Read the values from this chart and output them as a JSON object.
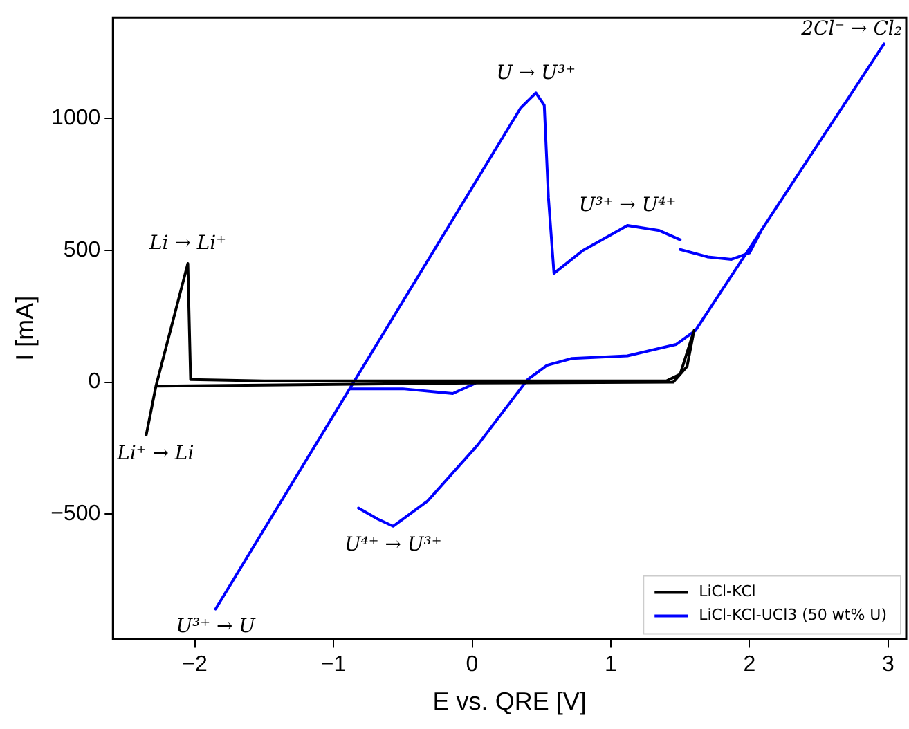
{
  "chart_data": {
    "type": "line",
    "xlabel": "E vs. QRE [V]",
    "ylabel": "I [mA]",
    "xlim": [
      -2.59,
      3.13
    ],
    "ylim": [
      -975,
      1383
    ],
    "xticks": [
      -2,
      -1,
      0,
      1,
      2,
      3
    ],
    "yticks": [
      -500,
      0,
      500,
      1000
    ],
    "grid": false,
    "legend": "bottom right",
    "marker": "none",
    "line_style": "solid",
    "series": [
      {
        "name": "LiCl-KCl",
        "color": "#000000",
        "x": [
          -2.35,
          -2.28,
          -2.05,
          -2.03,
          -1.5,
          0,
          1.4,
          1.5,
          1.6,
          1.55,
          1.45,
          0,
          -2.28
        ],
        "values": [
          -200,
          -15,
          450,
          10,
          5,
          5,
          5,
          30,
          196,
          60,
          0,
          -3,
          -15
        ]
      },
      {
        "name": "LiCl-KCl-UCl3 (50 wt% U)",
        "color": "#0000ff",
        "x": [
          -1.85,
          0.35,
          0.46,
          0.52,
          0.55,
          0.59,
          0.8,
          1.12,
          1.35,
          1.5,
          null,
          1.5,
          1.7,
          1.87,
          2.0,
          2.08,
          null,
          2.97,
          1.61,
          1.47,
          1.12,
          0.72,
          0.54,
          0.4,
          0.04,
          -0.32,
          -0.57,
          -0.68,
          -0.82,
          null,
          -0.87,
          -0.5,
          -0.14,
          0.02
        ],
        "values": [
          -860,
          1040,
          1097,
          1050,
          700,
          413,
          500,
          594,
          575,
          540,
          null,
          503,
          475,
          466,
          490,
          570,
          null,
          1283,
          196,
          143,
          100,
          90,
          64,
          10,
          -238,
          -450,
          -546,
          -519,
          -477,
          null,
          -25,
          -25,
          -43,
          -5
        ]
      }
    ],
    "annotations": [
      {
        "text": "Li → Li⁺",
        "x": -2.05,
        "y": 450
      },
      {
        "text": "Li⁺ → Li",
        "x": -2.35,
        "y": -200
      },
      {
        "text": "U → U³⁺",
        "x": 0.46,
        "y": 1097
      },
      {
        "text": "U³⁺ → U⁴⁺",
        "x": 1.12,
        "y": 594
      },
      {
        "text": "2Cl⁻ → Cl₂",
        "x": 2.97,
        "y": 1283
      },
      {
        "text": "U⁴⁺ → U³⁺",
        "x": -0.57,
        "y": -546
      },
      {
        "text": "U³⁺ → U",
        "x": -1.85,
        "y": -860
      }
    ]
  }
}
